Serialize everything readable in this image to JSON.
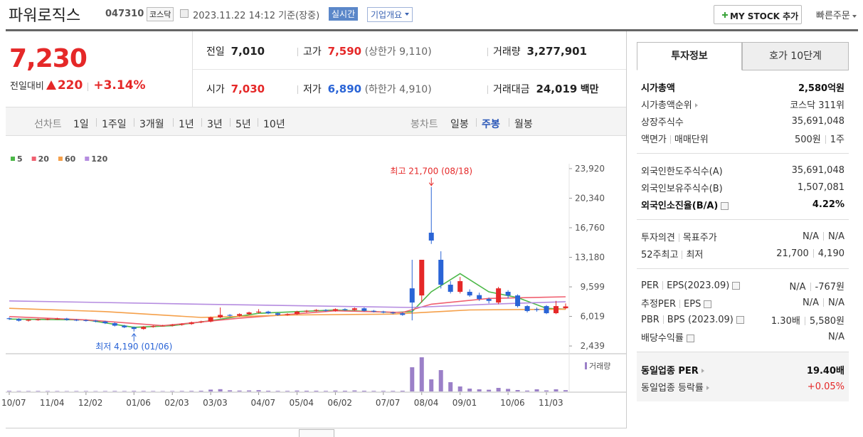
{
  "header": {
    "title": "파워로직스",
    "code": "047310",
    "market": "코스닥",
    "datetime": "2023.11.22 14:12",
    "basis": "기준(장중)",
    "realtime": "실시간",
    "overview": "기업개요",
    "mystock": "MY STOCK 추가",
    "quick_order": "빠른주문"
  },
  "quote": {
    "price": "7,230",
    "change_label": "전일대비",
    "change": "220",
    "change_pct": "+3.14%",
    "prev_label": "전일",
    "prev": "7,010",
    "open_label": "시가",
    "open": "7,030",
    "high_label": "고가",
    "high": "7,590",
    "upper_limit": "(상한가 9,110)",
    "low_label": "저가",
    "low": "6,890",
    "lower_limit": "(하한가 4,910)",
    "volume_label": "거래량",
    "volume": "3,277,901",
    "amount_label": "거래대금",
    "amount": "24,019",
    "amount_unit": "백만"
  },
  "toolbar": {
    "line_chart": "선차트",
    "periods": [
      "1일",
      "1주일",
      "3개월",
      "1년",
      "3년",
      "5년",
      "10년"
    ],
    "candle_chart": "봉차트",
    "candle_periods": [
      "일봉",
      "주봉",
      "월봉"
    ],
    "active_candle": 1
  },
  "chart_data": {
    "type": "candlestick",
    "up_color": "#e52828",
    "down_color": "#2a64d6",
    "categories": [
      "10/07",
      null,
      null,
      null,
      "11/04",
      null,
      null,
      null,
      "12/02",
      null,
      null,
      null,
      null,
      "01/06",
      null,
      null,
      null,
      "02/03",
      null,
      null,
      null,
      "03/03",
      null,
      null,
      null,
      null,
      "04/07",
      null,
      null,
      null,
      "05/04",
      null,
      null,
      null,
      "06/02",
      null,
      null,
      null,
      null,
      "07/07",
      null,
      null,
      null,
      "08/04",
      null,
      null,
      null,
      "09/01",
      null,
      null,
      null,
      null,
      "10/06",
      null,
      null,
      null,
      "11/03",
      null,
      null
    ],
    "ohlc": [
      [
        5800,
        5900,
        5600,
        5700
      ],
      [
        5700,
        5800,
        5400,
        5500
      ],
      [
        5500,
        5700,
        5400,
        5600
      ],
      [
        5600,
        5750,
        5500,
        5650
      ],
      [
        5650,
        5800,
        5550,
        5700
      ],
      [
        5700,
        5850,
        5600,
        5750
      ],
      [
        5750,
        5850,
        5500,
        5600
      ],
      [
        5600,
        5700,
        5450,
        5550
      ],
      [
        5550,
        5650,
        5400,
        5500
      ],
      [
        5500,
        5600,
        5300,
        5400
      ],
      [
        5400,
        5500,
        5100,
        5200
      ],
      [
        5200,
        5300,
        4800,
        4900
      ],
      [
        4900,
        5000,
        4600,
        4700
      ],
      [
        4700,
        4800,
        4190,
        4500
      ],
      [
        4500,
        4850,
        4400,
        4750
      ],
      [
        4750,
        4950,
        4650,
        4850
      ],
      [
        4850,
        5000,
        4800,
        4900
      ],
      [
        4900,
        5100,
        4800,
        5000
      ],
      [
        5000,
        5200,
        4900,
        5100
      ],
      [
        5100,
        5400,
        5000,
        5300
      ],
      [
        5300,
        5500,
        5200,
        5400
      ],
      [
        5400,
        6000,
        5300,
        5900
      ],
      [
        5900,
        7100,
        5800,
        6200
      ],
      [
        6200,
        6300,
        6000,
        6100
      ],
      [
        6100,
        6400,
        6000,
        6300
      ],
      [
        6300,
        6600,
        6200,
        6500
      ],
      [
        6500,
        6900,
        6400,
        6600
      ],
      [
        6600,
        6700,
        6300,
        6400
      ],
      [
        6400,
        6500,
        6100,
        6200
      ],
      [
        6200,
        6400,
        6100,
        6300
      ],
      [
        6300,
        6700,
        6200,
        6600
      ],
      [
        6600,
        6800,
        6500,
        6700
      ],
      [
        6700,
        6900,
        6600,
        6800
      ],
      [
        6800,
        6900,
        6600,
        6700
      ],
      [
        6700,
        7000,
        6600,
        6900
      ],
      [
        6900,
        7000,
        6700,
        6800
      ],
      [
        6800,
        7100,
        6700,
        7000
      ],
      [
        7000,
        7100,
        6600,
        6700
      ],
      [
        6700,
        6800,
        6500,
        6600
      ],
      [
        6600,
        6700,
        6400,
        6500
      ],
      [
        6500,
        6600,
        6300,
        6400
      ],
      [
        6400,
        6500,
        6100,
        6200
      ],
      [
        9420,
        12880,
        5540,
        7700
      ],
      [
        8560,
        12880,
        7700,
        12880
      ],
      [
        16160,
        21700,
        14800,
        15210
      ],
      [
        12880,
        13910,
        9400,
        9860
      ],
      [
        9860,
        10300,
        8800,
        9000
      ],
      [
        9000,
        10800,
        8800,
        10290
      ],
      [
        9000,
        9300,
        8400,
        8560
      ],
      [
        8600,
        8900,
        7900,
        8130
      ],
      [
        8130,
        8300,
        7600,
        7900
      ],
      [
        7700,
        9600,
        7500,
        9420
      ],
      [
        9000,
        9200,
        8200,
        8560
      ],
      [
        8560,
        8700,
        7100,
        7270
      ],
      [
        7270,
        7400,
        6500,
        6670
      ],
      [
        6900,
        7100,
        6600,
        6800
      ],
      [
        7270,
        7400,
        6300,
        6410
      ],
      [
        6410,
        7900,
        6300,
        7270
      ],
      [
        7010,
        7590,
        6890,
        7230
      ]
    ],
    "volumes": [
      400,
      300,
      300,
      350,
      300,
      300,
      250,
      300,
      300,
      250,
      300,
      350,
      300,
      400,
      350,
      300,
      250,
      300,
      350,
      400,
      500,
      1300,
      1600,
      800,
      600,
      700,
      900,
      500,
      400,
      400,
      600,
      500,
      500,
      400,
      600,
      500,
      700,
      500,
      400,
      400,
      400,
      500,
      17000,
      24000,
      8500,
      15000,
      6500,
      3500,
      2000,
      1500,
      1200,
      2500,
      1800,
      1000,
      600,
      1500,
      700,
      1500,
      900
    ],
    "volume_ylim": [
      0,
      25000
    ],
    "volume_label": "거래량",
    "volume_color": "#9b80c8",
    "ylim": [
      1500,
      24000
    ],
    "yticks": [
      {
        "value": 2439,
        "label": "2,439"
      },
      {
        "value": 6019,
        "label": "6,019"
      },
      {
        "value": 9599,
        "label": "9,599"
      },
      {
        "value": 13180,
        "label": "13,180"
      },
      {
        "value": 16760,
        "label": "16,760"
      },
      {
        "value": 20340,
        "label": "20,340"
      },
      {
        "value": 23920,
        "label": "23,920"
      }
    ],
    "series": [
      {
        "name": "5",
        "color": "#4cb848",
        "x": [
          0,
          4,
          8,
          13,
          17,
          21,
          26,
          34,
          40,
          42,
          44,
          47,
          50,
          53,
          56,
          58
        ],
        "values": [
          5700,
          5650,
          5600,
          4700,
          4900,
          5500,
          6400,
          6800,
          6500,
          6600,
          9000,
          11200,
          9000,
          8300,
          7000,
          6900
        ]
      },
      {
        "name": "20",
        "color": "#f06070",
        "x": [
          0,
          8,
          16,
          24,
          34,
          41,
          44,
          50,
          58
        ],
        "values": [
          6000,
          5600,
          4900,
          5800,
          6700,
          6500,
          7500,
          8200,
          8400
        ]
      },
      {
        "name": "60",
        "color": "#f5a04a",
        "x": [
          0,
          10,
          20,
          30,
          40,
          48,
          58
        ],
        "values": [
          7000,
          6600,
          5900,
          6200,
          6300,
          6800,
          6900
        ]
      },
      {
        "name": "120",
        "color": "#b58ce0",
        "x": [
          0,
          20,
          42,
          50,
          58
        ],
        "values": [
          7900,
          7500,
          7100,
          7500,
          7800
        ]
      }
    ],
    "annotations": [
      {
        "text": "최고 21,700 (08/18)",
        "x": 44,
        "y": 21700,
        "color": "#e52828"
      },
      {
        "text": "최저 4,190 (01/06)",
        "x": 13,
        "y": 4190,
        "color": "#2a64d6"
      }
    ]
  },
  "invest": {
    "tabs": [
      "투자정보",
      "호가 10단계"
    ],
    "active_tab": 0,
    "groups": [
      [
        {
          "labels": [
            "시가총액"
          ],
          "values": [
            "2,580억원"
          ],
          "strong": true
        },
        {
          "labels": [
            "시가총액순위"
          ],
          "arrow": true,
          "values": [
            "코스닥 311위"
          ]
        },
        {
          "labels": [
            "상장주식수"
          ],
          "values": [
            "35,691,048"
          ]
        },
        {
          "labels": [
            "액면가",
            "매매단위"
          ],
          "values": [
            "500원",
            "1주"
          ]
        }
      ],
      [
        {
          "labels": [
            "외국인한도주식수(A)"
          ],
          "values": [
            "35,691,048"
          ]
        },
        {
          "labels": [
            "외국인보유주식수(B)"
          ],
          "values": [
            "1,507,081"
          ]
        },
        {
          "labels": [
            "외국인소진율(B/A)"
          ],
          "help": true,
          "values": [
            "4.22%"
          ],
          "strong": true
        }
      ],
      [
        {
          "labels": [
            "투자의견",
            "목표주가"
          ],
          "values": [
            "N/A",
            "N/A"
          ]
        },
        {
          "labels": [
            "52주최고",
            "최저"
          ],
          "values": [
            "21,700",
            "4,190"
          ]
        }
      ],
      [
        {
          "labels": [
            "PER",
            "EPS(2023.09)"
          ],
          "help": true,
          "values": [
            "N/A",
            "-767원"
          ]
        },
        {
          "labels": [
            "추정PER",
            "EPS"
          ],
          "help": true,
          "values": [
            "N/A",
            "N/A"
          ]
        },
        {
          "labels": [
            "PBR",
            "BPS (2023.09)"
          ],
          "help": true,
          "values": [
            "1.30배",
            "5,580원"
          ]
        },
        {
          "labels": [
            "배당수익률"
          ],
          "help": true,
          "values": [
            "N/A"
          ]
        }
      ],
      [
        {
          "labels": [
            "동일업종 PER"
          ],
          "arrow": true,
          "values": [
            "19.40배"
          ],
          "strong": true
        },
        {
          "labels": [
            "동일업종 등락률"
          ],
          "arrow": true,
          "values": [
            "+0.05%"
          ],
          "value_color": "#e52828"
        }
      ]
    ]
  }
}
